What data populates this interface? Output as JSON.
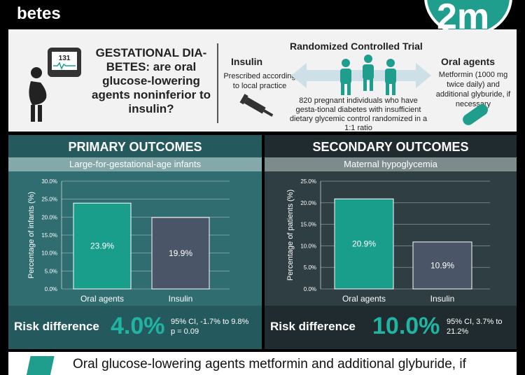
{
  "header": {
    "title": "betes",
    "logo_text": "2m"
  },
  "intro": {
    "monitor_value": "131",
    "question": "GESTATIONAL DIA-BETES: are oral glucose-lowering agents noninferior to insulin?",
    "trial_heading": "Randomized Controlled Trial",
    "insulin_heading": "Insulin",
    "insulin_desc": "Prescribed according to local practice",
    "oral_heading": "Oral agents",
    "oral_desc": "Metformin (1000 mg twice daily) and additional glyburide, if necessary",
    "trial_desc": "820 pregnant individuals who have gesta-tional diabetes with insufficient dietary glycemic control randomized in a 1:1 ratio"
  },
  "primary": {
    "heading": "PRIMARY OUTCOMES",
    "subheading": "Large-for-gestational-age infants",
    "risk_label": "Risk difference",
    "risk_value": "4.0%",
    "ci_text": "95% CI, -1.7% to 9.8%",
    "p_text": "p = 0.09"
  },
  "secondary": {
    "heading": "SECONDARY OUTCOMES",
    "subheading": "Maternal hypoglycemia",
    "risk_label": "Risk difference",
    "risk_value": "10.0%",
    "ci_text": "95% CI, 3.7% to 21.2%"
  },
  "footer": {
    "text": "Oral glucose-lowering agents metformin and additional glyburide, if"
  },
  "colors": {
    "teal": "#1f9d8d",
    "teal_bar": "#1a9e8c",
    "slate_bar": "#4a5568"
  },
  "chart_data": [
    {
      "type": "bar",
      "title": "Large-for-gestational-age infants",
      "ylabel": "Percentage of infants (%)",
      "categories": [
        "Oral agents",
        "Insulin"
      ],
      "values": [
        23.9,
        19.9
      ],
      "value_labels": [
        "23.9%",
        "19.9%"
      ],
      "ylim": [
        0,
        30
      ],
      "yticks": [
        "0.0%",
        "5.0%",
        "10.0%",
        "15.0%",
        "20.0%",
        "25.0%",
        "30.0%"
      ],
      "grid": true
    },
    {
      "type": "bar",
      "title": "Maternal hypoglycemia",
      "ylabel": "Percentage of patients (%)",
      "categories": [
        "Oral agents",
        "Insulin"
      ],
      "values": [
        20.9,
        10.9
      ],
      "value_labels": [
        "20.9%",
        "10.9%"
      ],
      "ylim": [
        0,
        25
      ],
      "yticks": [
        "0.0%",
        "5.0%",
        "10.0%",
        "15.0%",
        "20.0%",
        "25.0%"
      ],
      "grid": true
    }
  ]
}
